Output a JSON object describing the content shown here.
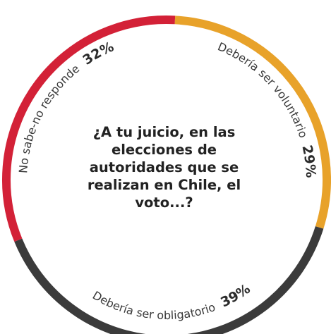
{
  "chart_data": {
    "type": "pie",
    "title": "¿A tu juicio, en las elecciones de autoridades que se realizan en Chile, el voto...?",
    "slices": [
      {
        "label": "Debería ser voluntario",
        "value": 29,
        "value_label": "29%",
        "color": "#e8a22a"
      },
      {
        "label": "Debería ser obligatorio",
        "value": 39,
        "value_label": "39%",
        "color": "#3b3b3b"
      },
      {
        "label": "No sabe-no responde",
        "value": 32,
        "value_label": "32%",
        "color": "#d32137"
      }
    ]
  }
}
